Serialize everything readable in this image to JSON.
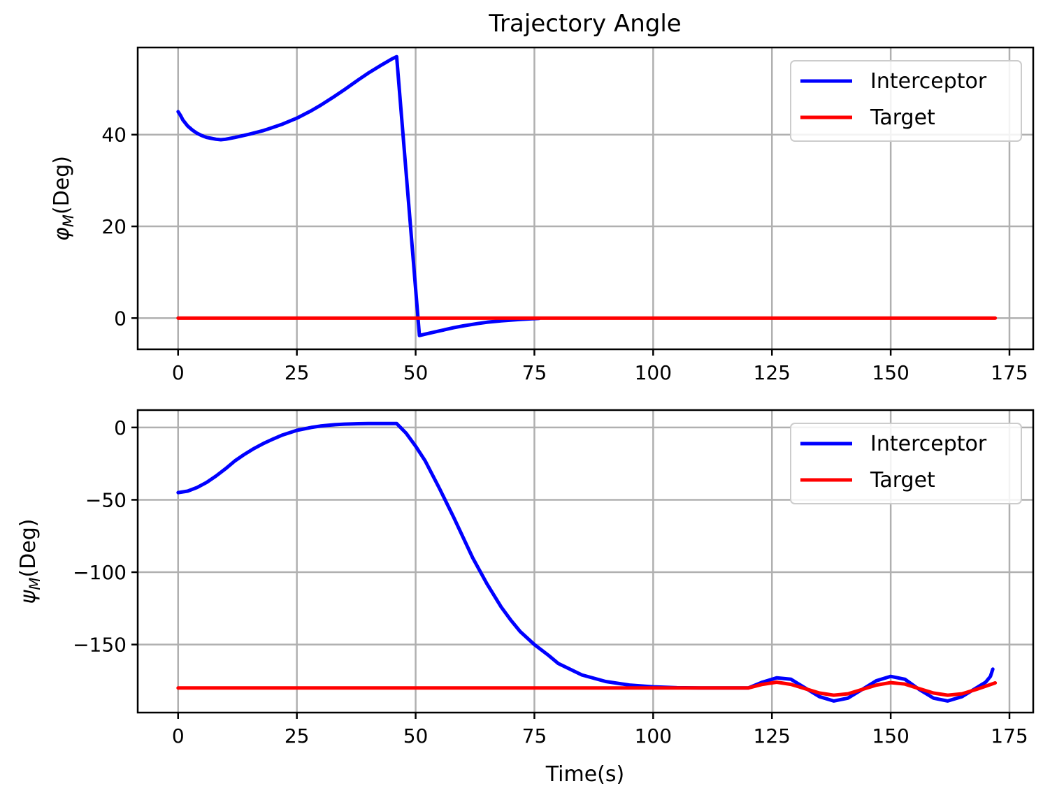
{
  "title": "Trajectory Angle",
  "xlabel": "Time(s)",
  "colors": {
    "interceptor": "#0000ff",
    "target": "#ff0000",
    "grid": "#b0b0b0"
  },
  "chart_data": [
    {
      "type": "line",
      "ylabel_symbol": "φ",
      "ylabel_sub": "M",
      "ylabel_rest": "(Deg)",
      "xlim": [
        -8.5,
        180
      ],
      "ylim": [
        -6.8,
        59
      ],
      "xticks": [
        0,
        25,
        50,
        75,
        100,
        125,
        150,
        175
      ],
      "yticks": [
        0,
        20,
        40
      ],
      "ytick_labels": [
        "0",
        "20",
        "40"
      ],
      "grid": true,
      "legend_position": "top-right",
      "series": [
        {
          "name": "Interceptor",
          "color": "#0000ff",
          "x": [
            0,
            0.5,
            1,
            2,
            3,
            4,
            5,
            6,
            7,
            8,
            9,
            10,
            12,
            15,
            18,
            20,
            22,
            25,
            28,
            30,
            33,
            35,
            38,
            40,
            43,
            45,
            46,
            50.8,
            52,
            55,
            58,
            60,
            63,
            65,
            68,
            70,
            72,
            75,
            76
          ],
          "y": [
            45,
            44.2,
            43.2,
            41.9,
            41,
            40.3,
            39.8,
            39.4,
            39.2,
            39.0,
            38.9,
            39.0,
            39.4,
            40.1,
            40.9,
            41.6,
            42.3,
            43.6,
            45.2,
            46.4,
            48.4,
            49.8,
            52.0,
            53.4,
            55.3,
            56.5,
            57.0,
            -3.8,
            -3.5,
            -2.8,
            -2.1,
            -1.7,
            -1.2,
            -0.9,
            -0.6,
            -0.45,
            -0.3,
            -0.12,
            -0.05
          ]
        },
        {
          "name": "Target",
          "color": "#ff0000",
          "x": [
            0,
            172
          ],
          "y": [
            0,
            0
          ]
        }
      ]
    },
    {
      "type": "line",
      "ylabel_symbol": "ψ",
      "ylabel_sub": "M",
      "ylabel_rest": "(Deg)",
      "xlim": [
        -8.5,
        180
      ],
      "ylim": [
        -197,
        12
      ],
      "xticks": [
        0,
        25,
        50,
        75,
        100,
        125,
        150,
        175
      ],
      "yticks": [
        0,
        -50,
        -100,
        -150
      ],
      "ytick_labels": [
        "0",
        "−50",
        "−100",
        "−150"
      ],
      "grid": true,
      "legend_position": "top-right",
      "series": [
        {
          "name": "Interceptor",
          "color": "#0000ff",
          "x": [
            0,
            2,
            4,
            6,
            8,
            10,
            12,
            14,
            16,
            18,
            20,
            22,
            25,
            28,
            30,
            33,
            35,
            38,
            40,
            43,
            46,
            48,
            50,
            52,
            55,
            58,
            60,
            62,
            65,
            68,
            70,
            72,
            75,
            78,
            80,
            85,
            90,
            95,
            100,
            105,
            110,
            115,
            120,
            123,
            126,
            129,
            132,
            135,
            138,
            141,
            144,
            147,
            150,
            153,
            156,
            159,
            162,
            165,
            168,
            170,
            171,
            171.5
          ],
          "y": [
            -45,
            -44,
            -41.5,
            -38,
            -33.5,
            -28.5,
            -23,
            -18.5,
            -14.5,
            -11,
            -8,
            -5.2,
            -2,
            0,
            1,
            1.9,
            2.3,
            2.6,
            2.7,
            2.7,
            2.7,
            -4,
            -13,
            -23,
            -42,
            -62,
            -76,
            -90,
            -108,
            -124,
            -133,
            -141,
            -150,
            -157.5,
            -163,
            -171,
            -175.5,
            -178,
            -179.2,
            -179.8,
            -180,
            -180,
            -180,
            -176,
            -173,
            -174,
            -180,
            -186,
            -189,
            -187,
            -181,
            -175,
            -172,
            -174,
            -181,
            -187,
            -189,
            -186,
            -180,
            -176,
            -172,
            -167
          ]
        },
        {
          "name": "Target",
          "color": "#ff0000",
          "x": [
            0,
            40,
            80,
            100,
            120,
            123,
            126,
            129,
            132,
            135,
            138,
            141,
            144,
            147,
            150,
            153,
            156,
            159,
            162,
            165,
            168,
            172
          ],
          "y": [
            -180,
            -180,
            -180,
            -180,
            -180,
            -177.5,
            -176,
            -177.5,
            -180.5,
            -183.5,
            -185,
            -184,
            -181,
            -178,
            -176.3,
            -177.3,
            -180.5,
            -183.5,
            -185,
            -184,
            -181,
            -176.5
          ]
        }
      ]
    }
  ]
}
